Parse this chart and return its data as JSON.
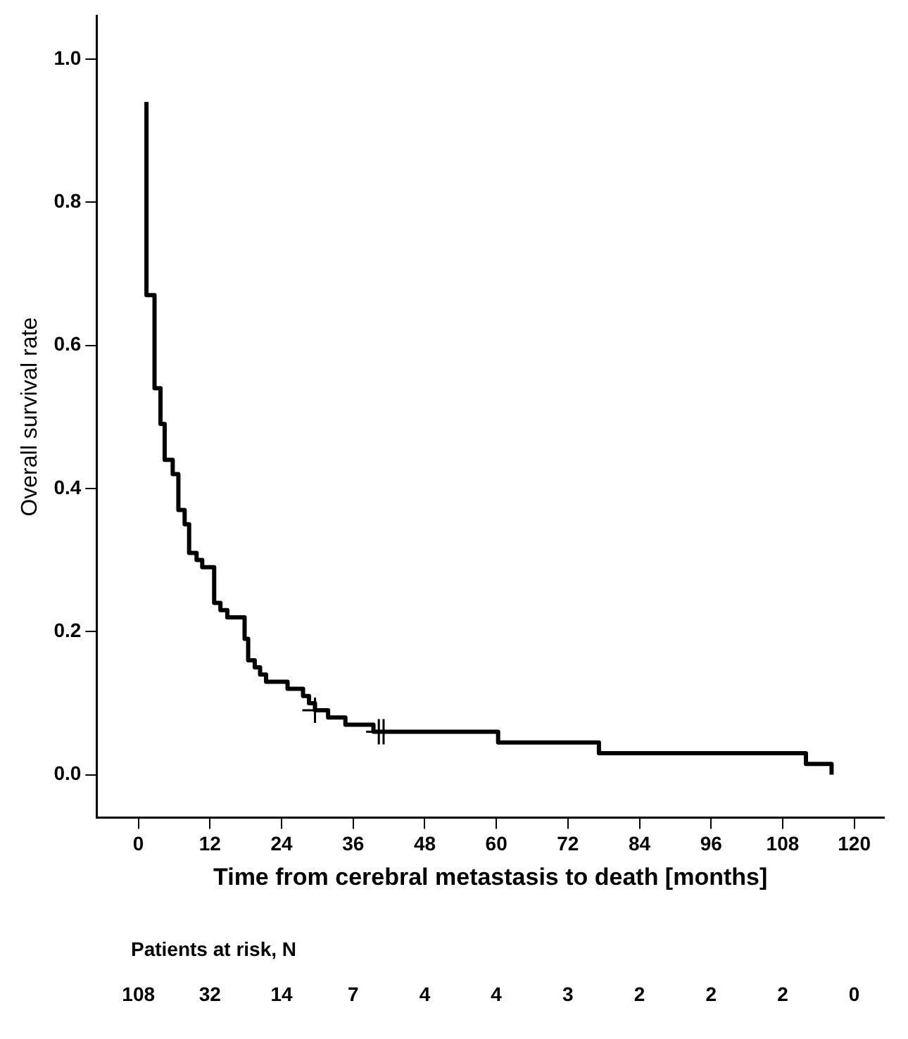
{
  "chart_data": {
    "type": "step",
    "xlabel": "Time from cerebral metastasis to death [months]",
    "ylabel": "Overall survival rate",
    "series": [
      {
        "color": "#000000",
        "x": [
          1.35,
          1.35,
          2.7,
          3.7,
          4.4,
          5.75,
          6.7,
          7.75,
          8.5,
          9.75,
          10.7,
          12.7,
          13.75,
          14.9,
          17.8,
          18.4,
          19.5,
          20.4,
          21.4,
          25.0,
          27.6,
          28.6,
          29.6,
          31.8,
          34.7,
          39.4,
          60.3,
          77.2,
          111.9,
          116.2
        ],
        "values": [
          0.94,
          0.67,
          0.54,
          0.49,
          0.44,
          0.42,
          0.37,
          0.35,
          0.31,
          0.3,
          0.29,
          0.24,
          0.23,
          0.22,
          0.19,
          0.16,
          0.15,
          0.14,
          0.13,
          0.12,
          0.11,
          0.1,
          0.09,
          0.08,
          0.07,
          0.06,
          0.045,
          0.03,
          0.015,
          0.0
        ]
      },
      {
        "type": "scatter",
        "marker": "cross",
        "color": "#000000",
        "x": [
          29.6,
          40.3,
          41.1
        ],
        "values": [
          0.09,
          0.06,
          0.06
        ]
      }
    ],
    "xlim": [
      -7,
      125
    ],
    "xticks": [
      0,
      12,
      24,
      36,
      48,
      60,
      72,
      84,
      96,
      108,
      120
    ],
    "ylim": [
      -0.06,
      1.06
    ],
    "yticks": [
      {
        "value": 0,
        "label": "0.0"
      },
      {
        "value": 0.2,
        "label": "0.2"
      },
      {
        "value": 0.4,
        "label": "0.4"
      },
      {
        "value": 0.6,
        "label": "0.6"
      },
      {
        "value": 0.8,
        "label": "0.8"
      },
      {
        "value": 1,
        "label": "1.0"
      }
    ],
    "grid": false,
    "legend": false,
    "annotations": [
      "Patients at risk, N",
      "108",
      "32",
      "14",
      "7",
      "4",
      "4",
      "3",
      "2",
      "2",
      "2",
      "0"
    ]
  }
}
